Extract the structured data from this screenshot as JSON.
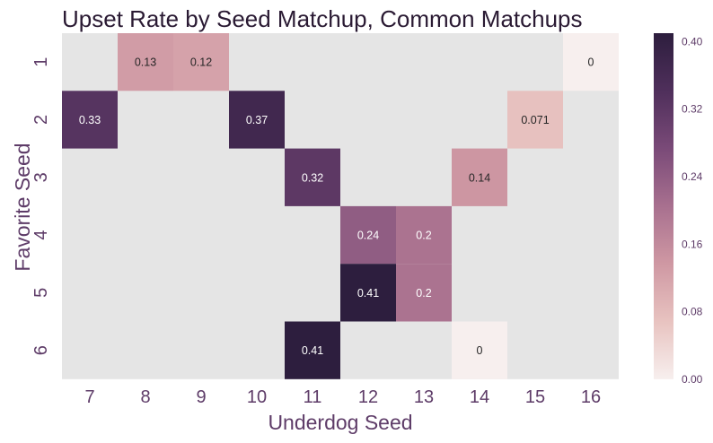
{
  "chart_data": {
    "type": "heatmap",
    "title": "Upset Rate by Seed Matchup, Common Matchups",
    "xlabel": "Underdog Seed",
    "ylabel": "Favorite Seed",
    "x_categories": [
      "7",
      "8",
      "9",
      "10",
      "11",
      "12",
      "13",
      "14",
      "15",
      "16"
    ],
    "y_categories": [
      "1",
      "2",
      "3",
      "4",
      "5",
      "6"
    ],
    "values": [
      [
        null,
        0.13,
        0.12,
        null,
        null,
        null,
        null,
        null,
        null,
        0
      ],
      [
        0.33,
        null,
        null,
        0.37,
        null,
        null,
        null,
        null,
        0.071,
        null
      ],
      [
        null,
        null,
        null,
        null,
        0.32,
        null,
        null,
        0.14,
        null,
        null
      ],
      [
        null,
        null,
        null,
        null,
        null,
        0.24,
        0.2,
        null,
        null,
        null
      ],
      [
        null,
        null,
        null,
        null,
        null,
        0.41,
        0.2,
        null,
        null,
        null
      ],
      [
        null,
        null,
        null,
        null,
        0.41,
        null,
        null,
        0,
        null,
        null
      ]
    ],
    "cell_labels": [
      [
        null,
        "0.13",
        "0.12",
        null,
        null,
        null,
        null,
        null,
        null,
        "0"
      ],
      [
        "0.33",
        null,
        null,
        "0.37",
        null,
        null,
        null,
        null,
        "0.071",
        null
      ],
      [
        null,
        null,
        null,
        null,
        "0.32",
        null,
        null,
        "0.14",
        null,
        null
      ],
      [
        null,
        null,
        null,
        null,
        null,
        "0.24",
        "0.2",
        null,
        null,
        null
      ],
      [
        null,
        null,
        null,
        null,
        null,
        "0.41",
        "0.2",
        null,
        null,
        null
      ],
      [
        null,
        null,
        null,
        null,
        "0.41",
        null,
        null,
        "0",
        null,
        null
      ]
    ],
    "colorbar": {
      "vmin": 0,
      "vmax": 0.41,
      "ticks": [
        "0.00",
        "0.08",
        "0.16",
        "0.24",
        "0.32",
        "0.40"
      ],
      "tick_values": [
        0,
        0.08,
        0.16,
        0.24,
        0.32,
        0.4
      ]
    },
    "colors": {
      "missing": "#e5e5e5",
      "low": "#f7efee",
      "high": "#2d1e3e",
      "stops": [
        "#f7efee",
        "#e8c3c0",
        "#cf98a3",
        "#a8708f",
        "#7a4a78",
        "#4f2f5b",
        "#2d1e3e"
      ]
    }
  }
}
